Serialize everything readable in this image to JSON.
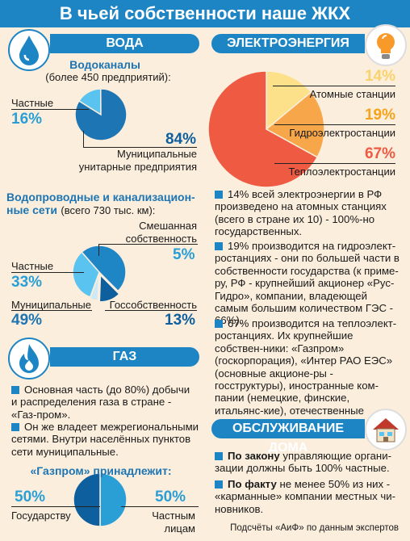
{
  "title": "В чьей собственности наше ЖКХ",
  "water": {
    "section": "ВОДА",
    "vodokanaly_title": "Водоканалы",
    "vodokanaly_sub": "(более 450 предприятий):",
    "private_label": "Частные",
    "private_pct": "16%",
    "muni_pct": "84%",
    "muni_label_1": "Муниципальные",
    "muni_label_2": "унитарные предприятия",
    "networks_title_1": "Водопроводные и канализацион-",
    "networks_title_2": "ные сети",
    "networks_sub": "(всего 730 тыс. км):",
    "mixed_label_1": "Смешанная",
    "mixed_label_2": "собственность",
    "mixed_pct": "5%",
    "net_private_label": "Частные",
    "net_private_pct": "33%",
    "net_muni_label": "Муниципальные",
    "net_muni_pct": "49%",
    "net_state_label": "Госсобственность",
    "net_state_pct": "13%"
  },
  "gas": {
    "section": "ГАЗ",
    "p1": "Основная часть (до 80%) добычи и распределения газа в стране - «Газ-пром».",
    "p2": "Он же владеет межрегиональными сетями. Внутри населённых пунктов сети муниципальные.",
    "gazprom_title": "«Газпром» принадлежит:",
    "state_pct": "50%",
    "state_label": "Государству",
    "private_pct": "50%",
    "private_label_1": "Частным",
    "private_label_2": "лицам"
  },
  "electricity": {
    "section": "ЭЛЕКТРОЭНЕРГИЯ",
    "nuclear_pct": "14%",
    "nuclear_label": "Атомные станции",
    "hydro_pct": "19%",
    "hydro_label": "Гидроэлектростанции",
    "thermal_pct": "67%",
    "thermal_label": "Теплоэлектростанции",
    "p1": "14% всей электроэнергии в РФ произведено на атомных станциях (всего в стране их 10) - 100%-но государственных.",
    "p2": "19% производится на гидроэлект-ростанциях - они по большей части в собственности государства (к приме-ру, РФ - крупнейший акционер «Рус-Гидро», компании, владеющей самым большим количеством ГЭС - 66%).",
    "p3": "67% производится на теплоэлект-ростанциях. Их крупнейшие собствен-ники: «Газпром» (госкорпорация), «Интер РАО ЕЭС» (основные акционе-ры - госструктуры), иностранные ком-пании (немецкие, финские, итальянс-кие), отечественные олигархи."
  },
  "housing": {
    "section": "ОБСЛУЖИВАНИЕ ДОМА",
    "p1_bold": "По закону",
    "p1_rest": " управляющие органи-зации должны быть 100% частные.",
    "p2_bold": "По факту",
    "p2_rest": " не менее 50% из них - «карманные» компании местных чи-новников."
  },
  "footer": "Подсчёты «АиФ» по данным экспертов",
  "colors": {
    "accent": "#1d85c4",
    "light_blue": "#5bc3f0",
    "dark_blue": "#0d5f9e",
    "mid_blue": "#1f86c6",
    "orange": "#f5a31a",
    "red": "#ef5a43",
    "yellow": "#fce08a",
    "bg": "#fbeedd"
  },
  "icons": [
    "water-drop-icon",
    "gas-flame-icon",
    "light-bulb-icon",
    "house-icon"
  ],
  "chart_data": [
    {
      "type": "pie",
      "title": "Водоканалы",
      "categories": [
        "Частные",
        "Муниципальные унитарные предприятия"
      ],
      "values": [
        16,
        84
      ]
    },
    {
      "type": "pie",
      "title": "Водопроводные и канализационные сети",
      "categories": [
        "Частные",
        "Муниципальные",
        "Госсобственность",
        "Смешанная собственность"
      ],
      "values": [
        33,
        49,
        13,
        5
      ]
    },
    {
      "type": "pie",
      "title": "«Газпром» принадлежит:",
      "categories": [
        "Государству",
        "Частным лицам"
      ],
      "values": [
        50,
        50
      ]
    },
    {
      "type": "pie",
      "title": "",
      "categories": [
        "Атомные станции",
        "Гидроэлектростанции",
        "Теплоэлектростанции"
      ],
      "values": [
        14,
        19,
        67
      ]
    }
  ]
}
